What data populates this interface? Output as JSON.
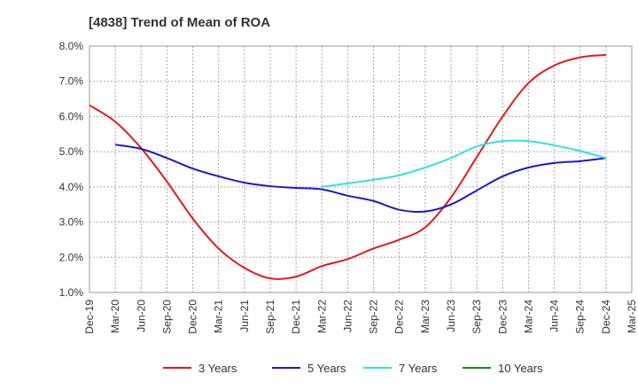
{
  "chart_data": {
    "type": "line",
    "title": "[4838]  Trend of Mean of ROA",
    "xlabel": "",
    "ylabel": "",
    "categories": [
      "Dec-19",
      "Mar-20",
      "Jun-20",
      "Sep-20",
      "Dec-20",
      "Mar-21",
      "Jun-21",
      "Sep-21",
      "Dec-21",
      "Mar-22",
      "Jun-22",
      "Sep-22",
      "Dec-22",
      "Mar-23",
      "Jun-23",
      "Sep-23",
      "Dec-23",
      "Mar-24",
      "Jun-24",
      "Sep-24",
      "Dec-24",
      "Mar-25"
    ],
    "ylim": [
      1.0,
      8.0
    ],
    "yticks": [
      "1.0%",
      "2.0%",
      "3.0%",
      "4.0%",
      "5.0%",
      "6.0%",
      "7.0%",
      "8.0%"
    ],
    "grid": true,
    "legend_position": "bottom",
    "series": [
      {
        "name": "3 Years",
        "color": "#e31a1c",
        "values": [
          6.32,
          5.85,
          5.1,
          4.15,
          3.1,
          2.25,
          1.7,
          1.4,
          1.45,
          1.75,
          1.95,
          2.25,
          2.5,
          2.85,
          3.7,
          4.85,
          6.0,
          6.95,
          7.45,
          7.68,
          7.75,
          null
        ]
      },
      {
        "name": "5 Years",
        "color": "#1a1ac8",
        "values": [
          null,
          5.2,
          5.08,
          4.82,
          4.52,
          4.3,
          4.12,
          4.02,
          3.97,
          3.93,
          3.75,
          3.6,
          3.35,
          3.3,
          3.5,
          3.9,
          4.3,
          4.55,
          4.68,
          4.73,
          4.82,
          null
        ]
      },
      {
        "name": "7 Years",
        "color": "#33e0e8",
        "values": [
          null,
          null,
          null,
          null,
          null,
          null,
          null,
          null,
          null,
          4.0,
          4.1,
          4.2,
          4.33,
          4.55,
          4.82,
          5.15,
          5.3,
          5.3,
          5.18,
          5.02,
          4.82,
          null
        ]
      },
      {
        "name": "10 Years",
        "color": "#1a8a1a",
        "values": [
          null,
          null,
          null,
          null,
          null,
          null,
          null,
          null,
          null,
          null,
          null,
          null,
          null,
          null,
          null,
          null,
          null,
          null,
          null,
          null,
          null,
          null
        ]
      }
    ]
  }
}
